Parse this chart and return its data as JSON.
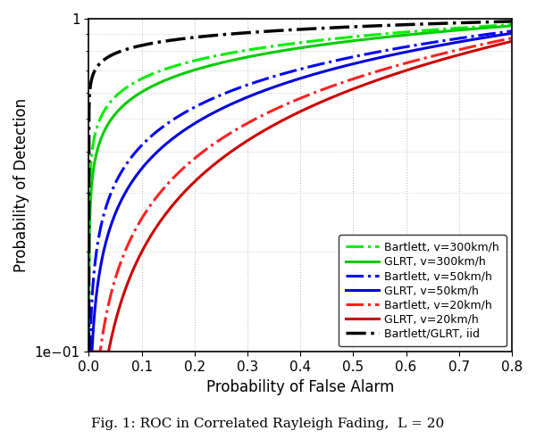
{
  "xlabel": "Probability of False Alarm",
  "ylabel": "Probability of Detection",
  "caption": "Fig. 1: ROC in Correlated Rayleigh Fading,  L = 20",
  "xlim": [
    0,
    0.8
  ],
  "ylim": [
    0.1,
    1.0
  ],
  "x_ticks": [
    0,
    0.1,
    0.2,
    0.3,
    0.4,
    0.5,
    0.6,
    0.7,
    0.8
  ],
  "curves": [
    {
      "label": "Bartlett, v=300km/h",
      "color": "#00ee00",
      "linestyle": "dashdot",
      "linewidth": 2.2,
      "k": 0.18
    },
    {
      "label": "GLRT, v=300km/h",
      "color": "#00cc00",
      "linestyle": "solid",
      "linewidth": 2.2,
      "k": 0.22
    },
    {
      "label": "Bartlett, v=50km/h",
      "color": "#0000ff",
      "linestyle": "dashdot",
      "linewidth": 2.2,
      "k": 0.38
    },
    {
      "label": "GLRT, v=50km/h",
      "color": "#0000dd",
      "linestyle": "solid",
      "linewidth": 2.2,
      "k": 0.45
    },
    {
      "label": "Bartlett, v=20km/h",
      "color": "#ff2020",
      "linestyle": "dashdot",
      "linewidth": 2.2,
      "k": 0.6
    },
    {
      "label": "GLRT, v=20km/h",
      "color": "#cc0000",
      "linestyle": "solid",
      "linewidth": 2.2,
      "k": 0.7
    },
    {
      "label": "Bartlett/GLRT, iid",
      "color": "#000000",
      "linestyle": "dashdot",
      "linewidth": 2.5,
      "k": 0.08
    }
  ],
  "legend_loc": "lower right",
  "grid_color": "#c0c0c0",
  "background_color": "#ffffff",
  "fontsize_axis_label": 12,
  "fontsize_tick": 11,
  "fontsize_legend": 9,
  "fontsize_caption": 11
}
